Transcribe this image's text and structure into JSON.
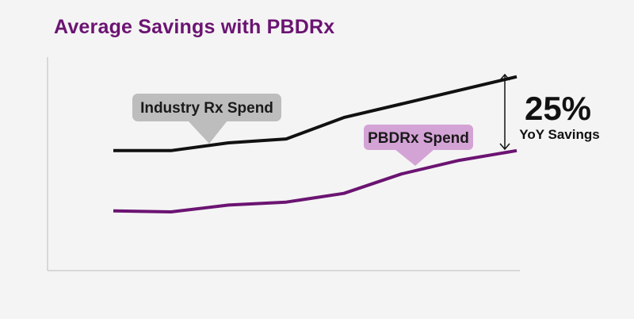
{
  "chart_data": {
    "type": "line",
    "title": "Average Savings with PBDRx",
    "xlabel": "",
    "ylabel": "",
    "x": [
      1,
      2,
      3,
      4,
      5,
      6,
      7,
      8
    ],
    "ylim": [
      0,
      100
    ],
    "grid": false,
    "series": [
      {
        "name": "Industry Rx Spend",
        "color": "#111111",
        "values": [
          56,
          56,
          60,
          62,
          73,
          80,
          87,
          94
        ]
      },
      {
        "name": "PBDRx Spend",
        "color": "#6b1472",
        "values": [
          25,
          24.5,
          28,
          29.5,
          34,
          44,
          51,
          56
        ]
      }
    ],
    "annotations": {
      "industry_label": "Industry Rx Spend",
      "pbdrx_label": "PBDRx Spend",
      "savings_value": "25%",
      "savings_caption": "YoY Savings"
    },
    "colors": {
      "title": "#6b1472",
      "industry_callout_bg": "#bdbdbd",
      "pbdrx_callout_bg": "#d4a3d6",
      "axis": "#cfcfcf"
    }
  }
}
